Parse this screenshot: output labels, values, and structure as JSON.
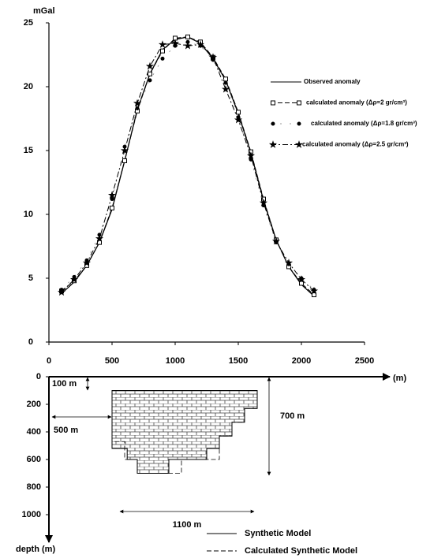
{
  "chart_data": [
    {
      "type": "line",
      "y_label": "mGal",
      "x": [
        100,
        200,
        300,
        400,
        500,
        600,
        700,
        800,
        900,
        1000,
        1100,
        1200,
        1300,
        1400,
        1500,
        1600,
        1700,
        1800,
        1900,
        2000,
        2100
      ],
      "series": [
        {
          "name": "Observed anomaly",
          "color": "#000000",
          "line_style": "solid",
          "marker": "none",
          "values": [
            3.8,
            4.7,
            6.0,
            7.8,
            10.4,
            14.2,
            18.2,
            21.0,
            22.9,
            23.7,
            23.9,
            23.4,
            22.2,
            20.5,
            17.9,
            14.8,
            11.1,
            8.0,
            5.9,
            4.5,
            3.6
          ]
        },
        {
          "name": "calculated anomaly (Δρ=2 gr/cm³)",
          "color": "#000000",
          "line_style": "dashed",
          "marker": "square",
          "values": [
            4.0,
            4.8,
            6.0,
            7.8,
            10.5,
            14.2,
            18.1,
            21.0,
            22.8,
            23.8,
            23.9,
            23.5,
            22.3,
            20.6,
            18.0,
            14.9,
            11.2,
            8.0,
            5.9,
            4.6,
            3.7
          ]
        },
        {
          "name": "calculated anomaly (Δρ=1.8 gr/cm³)",
          "color": "#999999",
          "line_style": "dotted",
          "marker": "dot",
          "values": [
            4.1,
            5.1,
            6.4,
            8.4,
            11.2,
            15.3,
            18.3,
            20.5,
            22.2,
            23.2,
            23.5,
            23.2,
            22.1,
            20.3,
            17.6,
            14.3,
            10.7,
            7.8,
            6.1,
            5.0,
            4.1
          ]
        },
        {
          "name": "calculated anomaly (Δρ=2.5 gr/cm³)",
          "color": "#000000",
          "line_style": "dashdot",
          "marker": "star",
          "values": [
            3.9,
            4.9,
            6.2,
            8.1,
            11.5,
            15.0,
            18.7,
            21.6,
            23.3,
            23.4,
            23.2,
            23.3,
            22.3,
            19.8,
            17.4,
            14.6,
            10.9,
            7.9,
            6.2,
            4.9,
            4.0
          ]
        }
      ],
      "xlim": [
        0,
        2500
      ],
      "xticks": [
        0,
        500,
        1000,
        1500,
        2000,
        2500
      ],
      "ylim": [
        0,
        25
      ],
      "yticks": [
        0,
        5,
        10,
        15,
        20,
        25
      ]
    },
    {
      "type": "model",
      "x_label": "(m)",
      "y_label": "depth (m)",
      "xlim": [
        0,
        2500
      ],
      "ylim": [
        0,
        1000
      ],
      "yticks": [
        0,
        200,
        400,
        600,
        800,
        1000
      ],
      "annotations": [
        "100 m",
        "500 m",
        "700 m",
        "1100 m"
      ],
      "models": [
        {
          "name": "Synthetic Model",
          "line_style": "solid",
          "x": [
            500,
            1650,
            1650,
            1550,
            1550,
            1450,
            1450,
            1350,
            1350,
            1250,
            1250,
            950,
            950,
            700,
            700,
            620,
            620,
            500
          ],
          "depth": [
            100,
            100,
            230,
            230,
            330,
            330,
            430,
            430,
            520,
            520,
            600,
            600,
            700,
            700,
            600,
            600,
            520,
            520
          ]
        },
        {
          "name": "Calculated Synthetic Model",
          "line_style": "dashed",
          "x": [
            500,
            1650,
            1650,
            1550,
            1550,
            1450,
            1450,
            1350,
            1350,
            1050,
            1050,
            700,
            700,
            600,
            600,
            500
          ],
          "depth": [
            100,
            100,
            230,
            230,
            330,
            330,
            430,
            430,
            600,
            600,
            700,
            700,
            600,
            600,
            470,
            470
          ]
        }
      ]
    }
  ]
}
